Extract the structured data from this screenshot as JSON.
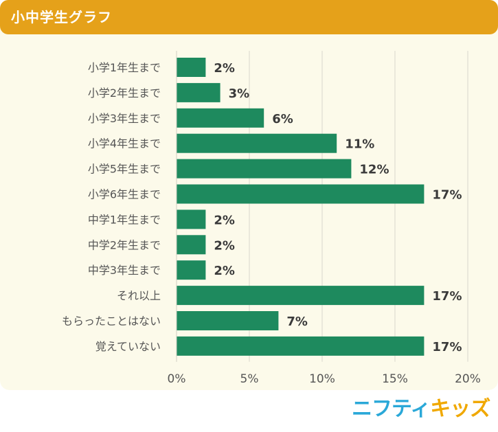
{
  "header": {
    "title": "小中学生グラフ"
  },
  "logo": {
    "part1": "ニフティ",
    "part2": "キッズ"
  },
  "colors": {
    "bar": "#1e8a5e",
    "header": "#e5a11a",
    "panel": "#fcfaea",
    "grid": "#d9d7cc"
  },
  "chart_data": {
    "type": "bar",
    "orientation": "horizontal",
    "categories": [
      "小学1年生まで",
      "小学2年生まで",
      "小学3年生まで",
      "小学4年生まで",
      "小学5年生まで",
      "小学6年生まで",
      "中学1年生まで",
      "中学2年生まで",
      "中学3年生まで",
      "それ以上",
      "もらったことはない",
      "覚えていない"
    ],
    "values": [
      2,
      3,
      6,
      11,
      12,
      17,
      2,
      2,
      2,
      17,
      7,
      17
    ],
    "data_labels": [
      "2%",
      "3%",
      "6%",
      "11%",
      "12%",
      "17%",
      "2%",
      "2%",
      "2%",
      "17%",
      "7%",
      "17%"
    ],
    "xlim": [
      0,
      20
    ],
    "xticks": [
      0,
      5,
      10,
      15,
      20
    ],
    "xtick_labels": [
      "0%",
      "5%",
      "10%",
      "15%",
      "20%"
    ],
    "grid": true
  }
}
